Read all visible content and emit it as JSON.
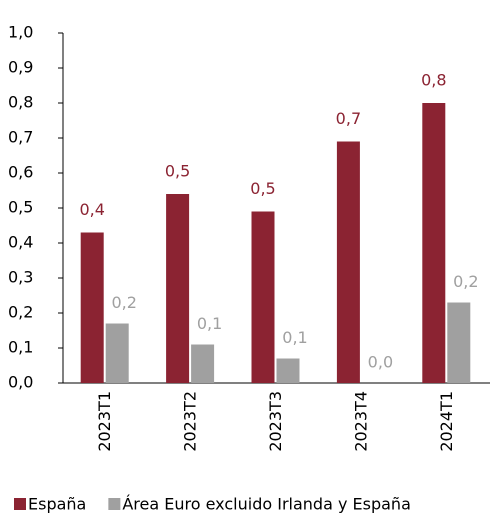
{
  "chart_data": {
    "type": "bar",
    "categories": [
      "2023T1",
      "2023T2",
      "2023T3",
      "2023T4",
      "2024T1"
    ],
    "series": [
      {
        "name": "España",
        "color": "#8b2332",
        "values": [
          0.43,
          0.54,
          0.49,
          0.69,
          0.8
        ],
        "value_labels": [
          "0,4",
          "0,5",
          "0,5",
          "0,7",
          "0,8"
        ]
      },
      {
        "name": "Área Euro excluido Irlanda y España",
        "color": "#a0a0a0",
        "values": [
          0.17,
          0.11,
          0.07,
          0.0,
          0.23
        ],
        "value_labels": [
          "0,2",
          "0,1",
          "0,1",
          "0,0",
          "0,2"
        ]
      }
    ],
    "ylim": [
      0,
      1
    ],
    "yticks": [
      {
        "value": 0,
        "label": "0,0"
      },
      {
        "value": 0.1,
        "label": "0,1"
      },
      {
        "value": 0.2,
        "label": "0,2"
      },
      {
        "value": 0.3,
        "label": "0,3"
      },
      {
        "value": 0.4,
        "label": "0,4"
      },
      {
        "value": 0.5,
        "label": "0,5"
      },
      {
        "value": 0.6,
        "label": "0,6"
      },
      {
        "value": 0.7,
        "label": "0,7"
      },
      {
        "value": 0.8,
        "label": "0,8"
      },
      {
        "value": 0.9,
        "label": "0,9"
      },
      {
        "value": 1,
        "label": "1,0"
      }
    ],
    "grid": false,
    "legend": "bottom"
  }
}
